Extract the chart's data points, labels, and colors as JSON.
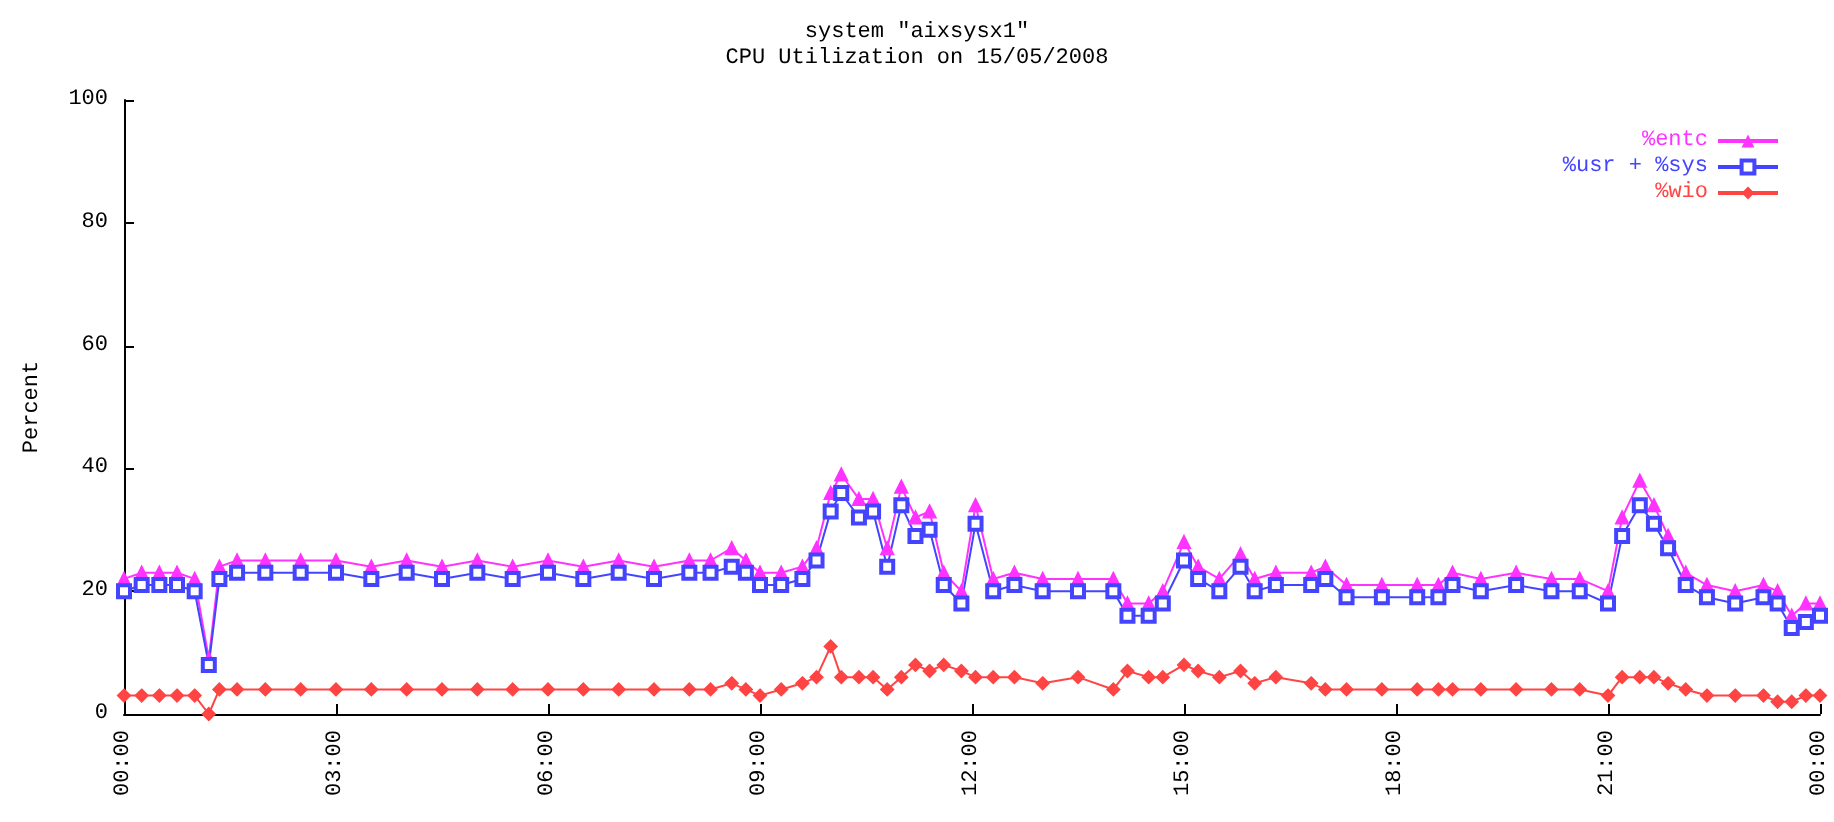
{
  "chart_data": {
    "type": "line",
    "title": "system \"aixsysx1\"",
    "subtitle": "CPU Utilization on 15/05/2008",
    "ylabel": "Percent",
    "x": [
      0,
      0.25,
      0.5,
      0.75,
      1.0,
      1.2,
      1.35,
      1.6,
      2,
      2.5,
      3,
      3.5,
      4,
      4.5,
      5,
      5.5,
      6,
      6.5,
      7,
      7.5,
      8,
      8.3,
      8.6,
      8.8,
      9.0,
      9.3,
      9.6,
      9.8,
      10.0,
      10.15,
      10.4,
      10.6,
      10.8,
      11.0,
      11.2,
      11.4,
      11.6,
      11.85,
      12.05,
      12.3,
      12.6,
      13,
      13.5,
      14.0,
      14.2,
      14.5,
      14.7,
      15.0,
      15.2,
      15.5,
      15.8,
      16.0,
      16.3,
      16.8,
      17.0,
      17.3,
      17.8,
      18.3,
      18.6,
      18.8,
      19.2,
      19.7,
      20.2,
      20.6,
      21.0,
      21.2,
      21.45,
      21.65,
      21.85,
      22.1,
      22.4,
      22.8,
      23.2,
      23.4,
      23.6,
      23.8,
      24.0
    ],
    "series": [
      {
        "name": "%entc",
        "color": "#ff33ff",
        "marker": "triangle",
        "values": [
          22,
          23,
          23,
          23,
          22,
          9,
          24,
          25,
          25,
          25,
          25,
          24,
          25,
          24,
          25,
          24,
          25,
          24,
          25,
          24,
          25,
          25,
          27,
          25,
          23,
          23,
          24,
          27,
          36,
          39,
          35,
          35,
          27,
          37,
          32,
          33,
          23,
          20,
          34,
          22,
          23,
          22,
          22,
          22,
          18,
          18,
          20,
          28,
          24,
          22,
          26,
          22,
          23,
          23,
          24,
          21,
          21,
          21,
          21,
          23,
          22,
          23,
          22,
          22,
          20,
          32,
          38,
          34,
          29,
          23,
          21,
          20,
          21,
          20,
          16,
          18,
          18
        ]
      },
      {
        "name": "%usr + %sys",
        "color": "#4444ff",
        "marker": "square",
        "values": [
          20,
          21,
          21,
          21,
          20,
          8,
          22,
          23,
          23,
          23,
          23,
          22,
          23,
          22,
          23,
          22,
          23,
          22,
          23,
          22,
          23,
          23,
          24,
          23,
          21,
          21,
          22,
          25,
          33,
          36,
          32,
          33,
          24,
          34,
          29,
          30,
          21,
          18,
          31,
          20,
          21,
          20,
          20,
          20,
          16,
          16,
          18,
          25,
          22,
          20,
          24,
          20,
          21,
          21,
          22,
          19,
          19,
          19,
          19,
          21,
          20,
          21,
          20,
          20,
          18,
          29,
          34,
          31,
          27,
          21,
          19,
          18,
          19,
          18,
          14,
          15,
          16
        ]
      },
      {
        "name": "%wio",
        "color": "#ff4444",
        "marker": "diamond",
        "values": [
          3,
          3,
          3,
          3,
          3,
          0,
          4,
          4,
          4,
          4,
          4,
          4,
          4,
          4,
          4,
          4,
          4,
          4,
          4,
          4,
          4,
          4,
          5,
          4,
          3,
          4,
          5,
          6,
          11,
          6,
          6,
          6,
          4,
          6,
          8,
          7,
          8,
          7,
          6,
          6,
          6,
          5,
          6,
          4,
          7,
          6,
          6,
          8,
          7,
          6,
          7,
          5,
          6,
          5,
          4,
          4,
          4,
          4,
          4,
          4,
          4,
          4,
          4,
          4,
          3,
          6,
          6,
          6,
          5,
          4,
          3,
          3,
          3,
          2,
          2,
          3,
          3
        ]
      }
    ],
    "xlim": [
      0,
      24
    ],
    "xticks": [
      {
        "value": 0,
        "label": "00:00"
      },
      {
        "value": 3,
        "label": "03:00"
      },
      {
        "value": 6,
        "label": "06:00"
      },
      {
        "value": 9,
        "label": "09:00"
      },
      {
        "value": 12,
        "label": "12:00"
      },
      {
        "value": 15,
        "label": "15:00"
      },
      {
        "value": 18,
        "label": "18:00"
      },
      {
        "value": 21,
        "label": "21:00"
      },
      {
        "value": 24,
        "label": "00:00"
      }
    ],
    "ylim": [
      0,
      100
    ],
    "yticks": [
      0,
      20,
      40,
      60,
      80,
      100
    ],
    "grid": false,
    "legend": "top right",
    "line_style": "solid"
  }
}
